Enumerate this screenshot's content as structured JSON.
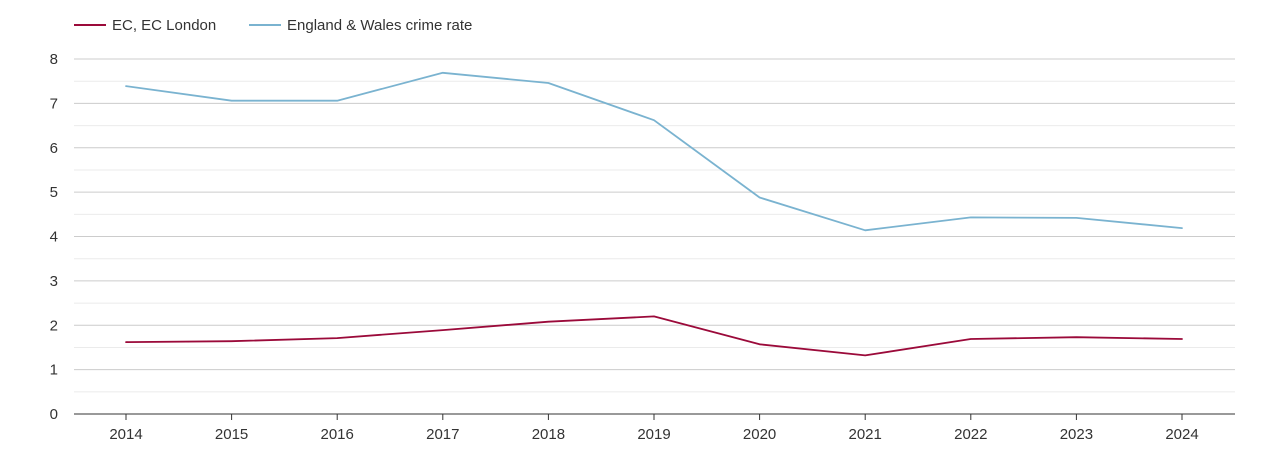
{
  "chart_data": {
    "type": "line",
    "title": "",
    "xlabel": "",
    "ylabel": "",
    "categories": [
      "2014",
      "2015",
      "2016",
      "2017",
      "2018",
      "2019",
      "2020",
      "2021",
      "2022",
      "2023",
      "2024"
    ],
    "ylim": [
      0,
      8
    ],
    "yticks": [
      "0",
      "1",
      "2",
      "3",
      "4",
      "5",
      "6",
      "7",
      "8"
    ],
    "grid": true,
    "legend_position": "top-left",
    "series": [
      {
        "name": "EC, EC London",
        "color": "#9b0a3a",
        "values": [
          1.62,
          1.64,
          1.71,
          1.89,
          2.08,
          2.2,
          1.57,
          1.32,
          1.69,
          1.73,
          1.69
        ]
      },
      {
        "name": "England & Wales crime rate",
        "color": "#7ab3d0",
        "values": [
          7.39,
          7.06,
          7.06,
          7.69,
          7.46,
          6.62,
          4.88,
          4.14,
          4.43,
          4.42,
          4.19
        ]
      }
    ]
  }
}
